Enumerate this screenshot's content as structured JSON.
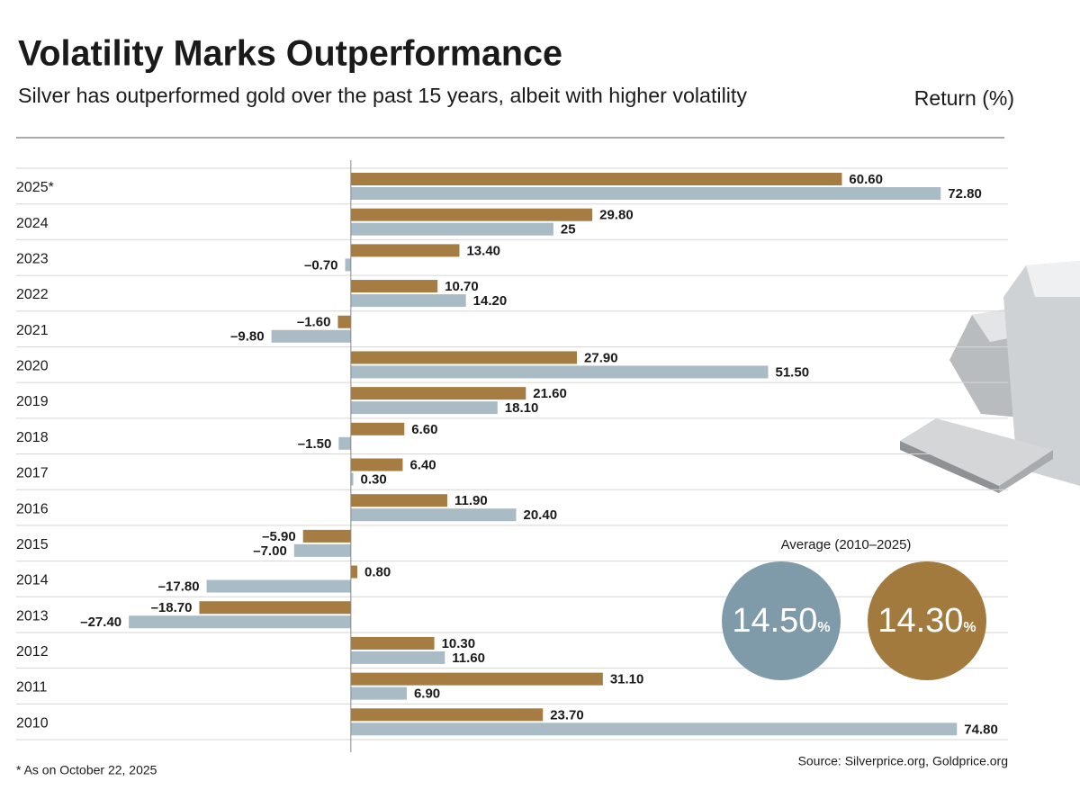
{
  "chart_data": {
    "type": "hbar",
    "title": "Volatility Marks Outperformance",
    "subtitle": "Silver has outperformed gold over the past 15 years, albeit with higher volatility",
    "axis_label": "Return (%)",
    "footnote": "* As on October 22, 2025",
    "source": "Source: Silverprice.org, Goldprice.org",
    "categories": [
      "2025*",
      "2024",
      "2023",
      "2022",
      "2021",
      "2020",
      "2019",
      "2018",
      "2017",
      "2016",
      "2015",
      "2014",
      "2013",
      "2012",
      "2011",
      "2010"
    ],
    "series": [
      {
        "color": "#a57c42",
        "values": [
          60.6,
          29.8,
          13.4,
          10.7,
          -1.6,
          27.9,
          21.6,
          6.6,
          6.4,
          11.9,
          -5.9,
          0.8,
          -18.7,
          10.3,
          31.1,
          23.7
        ],
        "value_labels": [
          "60.60",
          "29.80",
          "13.40",
          "10.70",
          "–1.60",
          "27.90",
          "21.60",
          "6.60",
          "6.40",
          "11.90",
          "–5.90",
          "0.80",
          "–18.70",
          "10.30",
          "31.10",
          "23.70"
        ]
      },
      {
        "color": "#a9bcc6",
        "values": [
          72.8,
          25,
          -0.7,
          14.2,
          -9.8,
          51.5,
          18.1,
          -1.5,
          0.3,
          20.4,
          -7.0,
          -17.8,
          -27.4,
          11.6,
          6.9,
          74.8
        ],
        "value_labels": [
          "72.80",
          "25",
          "–0.70",
          "14.20",
          "–9.80",
          "51.50",
          "18.10",
          "–1.50",
          "0.30",
          "20.40",
          "–7.00",
          "–17.80",
          "–27.40",
          "11.60",
          "6.90",
          "74.80"
        ]
      }
    ],
    "xlim": [
      -41.3,
      81.1
    ],
    "average_title": "Average (2010–2025)",
    "averages": [
      {
        "value": 14.5,
        "label": "14.50",
        "unit": "%",
        "color": "#7f9aa8"
      },
      {
        "value": 14.3,
        "label": "14.30",
        "unit": "%",
        "color": "#a37a3e"
      }
    ]
  }
}
